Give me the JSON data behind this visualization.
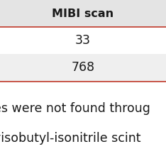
{
  "header_text": "MIBI scan",
  "row1_value": "33",
  "row2_value": "768",
  "footer_line1": "es were not found throug",
  "footer_line2": "yisobutyl-isonitrile scint",
  "bg_color": "#ffffff",
  "header_bg": "#e4e4e4",
  "row2_bg": "#efefef",
  "red_line_color": "#c0392b",
  "text_color": "#1a1a1a",
  "header_fontsize": 11.5,
  "value_fontsize": 12.5,
  "footer_fontsize": 12.5,
  "fig_width": 2.34,
  "fig_height": 2.34,
  "dpi": 100
}
